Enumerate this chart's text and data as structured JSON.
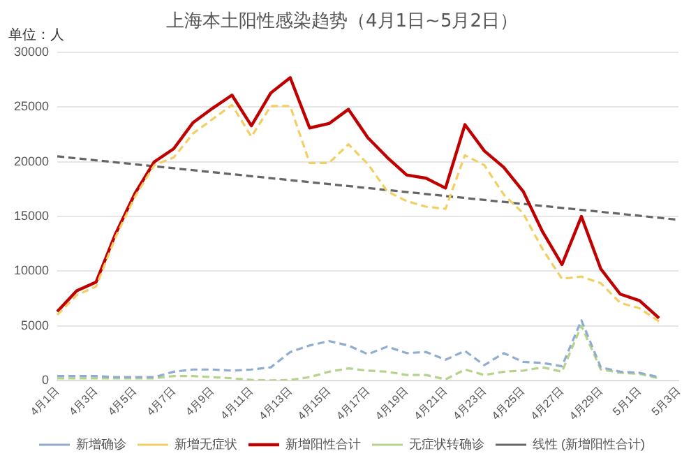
{
  "chart_data": {
    "type": "line",
    "title": "上海本土阳性感染趋势（4月1日~5月2日）",
    "ylabel": "单位：人",
    "categories": [
      "4月1日",
      null,
      "4月3日",
      null,
      "4月5日",
      null,
      "4月7日",
      null,
      "4月9日",
      null,
      "4月11日",
      null,
      "4月13日",
      null,
      "4月15日",
      null,
      "4月17日",
      null,
      "4月19日",
      null,
      "4月21日",
      null,
      "4月23日",
      null,
      "4月25日",
      null,
      "4月27日",
      null,
      "4月29日",
      null,
      "5月1日",
      null,
      "5月3日"
    ],
    "series": [
      {
        "name": "新增确诊",
        "color": "#8fadd0",
        "line_style": "dashed",
        "values": [
          400,
          400,
          400,
          300,
          300,
          300,
          800,
          1000,
          1000,
          900,
          1000,
          1200,
          2600,
          3200,
          3600,
          3200,
          2400,
          3100,
          2500,
          2600,
          1900,
          2700,
          1400,
          2500,
          1700,
          1600,
          1300,
          5500,
          1200,
          800,
          700,
          300,
          null
        ]
      },
      {
        "name": "新增无症状",
        "color": "#f2cf62",
        "line_style": "dashed",
        "values": [
          6000,
          7800,
          8600,
          13100,
          16800,
          19700,
          20400,
          22600,
          23900,
          25200,
          22300,
          25100,
          25100,
          19900,
          19900,
          21600,
          19800,
          17300,
          16400,
          15900,
          15700,
          20600,
          19700,
          17000,
          15300,
          12000,
          9300,
          9500,
          8900,
          7100,
          6600,
          5400,
          null
        ]
      },
      {
        "name": "新增阳性合计",
        "color": "#c00000",
        "line_style": "solid",
        "values": [
          6300,
          8200,
          9000,
          13400,
          17100,
          20000,
          21200,
          23600,
          24900,
          26100,
          23300,
          26300,
          27700,
          23100,
          23500,
          24800,
          22200,
          20400,
          18800,
          18500,
          17600,
          23400,
          21000,
          19500,
          17300,
          13600,
          10600,
          15000,
          10200,
          7900,
          7300,
          5700,
          null
        ]
      },
      {
        "name": "无症状转确诊",
        "color": "#b5d38a",
        "line_style": "dashed",
        "values": [
          200,
          200,
          200,
          200,
          200,
          200,
          400,
          400,
          300,
          200,
          50,
          0,
          50,
          300,
          800,
          1100,
          900,
          800,
          500,
          500,
          100,
          1000,
          500,
          800,
          900,
          1200,
          800,
          5000,
          1000,
          700,
          600,
          200,
          null
        ]
      },
      {
        "name": "线性 (新增阳性合计)",
        "color": "#666666",
        "line_style": "dashed",
        "x": [
          "4月1日",
          "5月3日"
        ],
        "values": [
          20500,
          14700
        ]
      }
    ],
    "ylim": [
      0,
      30000
    ],
    "yticks": [
      0,
      5000,
      10000,
      15000,
      20000,
      25000,
      30000
    ],
    "grid": "y",
    "legend": "bottom",
    "marker": "none"
  }
}
